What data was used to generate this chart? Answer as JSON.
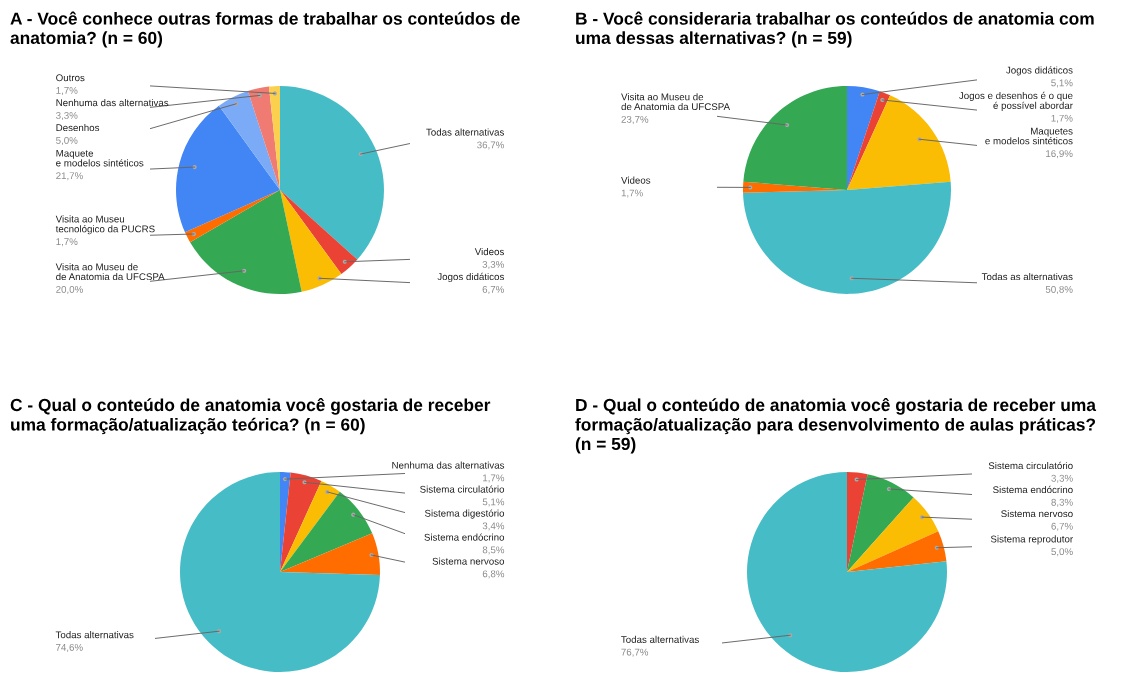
{
  "chart_data": [
    {
      "type": "pie",
      "title": "A - Você conhece outras formas de trabalhar os conteúdos de anatomia? (n = 60)",
      "categories": [
        "Todas alternativas",
        "Videos",
        "Jogos didáticos",
        "Visita ao Museu de\nde Anatomia da UFCSPA",
        "Visita ao Museu\ntecnológico da PUCRS",
        "Maquete\ne modelos sintéticos",
        "Desenhos",
        "Nenhuma das alternativas",
        "Outros"
      ],
      "values": [
        36.7,
        3.3,
        6.7,
        20.0,
        1.7,
        21.7,
        5.0,
        3.3,
        1.7
      ],
      "colors": [
        "#46bdc6",
        "#ea4335",
        "#fbbc04",
        "#34a853",
        "#ff6d01",
        "#4285f4",
        "#7baaf7",
        "#f07b72",
        "#fcd04f"
      ],
      "value_labels": [
        "36,7%",
        "3,3%",
        "6,7%",
        "20,0%",
        "1,7%",
        "21,7%",
        "5,0%",
        "3,3%",
        "1,7%"
      ]
    },
    {
      "type": "pie",
      "title": "B - Você consideraria trabalhar os conteúdos de anatomia com uma dessas alternativas? (n = 59)",
      "categories": [
        "Jogos didáticos",
        "Jogos e desenhos é o que\né possível abordar",
        "Maquetes\ne modelos sintéticos",
        "Todas as alternativas",
        "Videos",
        "Visita ao Museu de\nde Anatomia da UFCSPA"
      ],
      "values": [
        5.1,
        1.7,
        16.9,
        50.8,
        1.7,
        23.7
      ],
      "colors": [
        "#4285f4",
        "#ea4335",
        "#fbbc04",
        "#46bdc6",
        "#ff6d01",
        "#34a853"
      ],
      "value_labels": [
        "5,1%",
        "1,7%",
        "16,9%",
        "50,8%",
        "1,7%",
        "23,7%"
      ]
    },
    {
      "type": "pie",
      "title": "C - Qual o conteúdo de anatomia você gostaria de receber uma formação/atualização teórica? (n = 60)",
      "categories": [
        "Nenhuma das alternativas",
        "Sistema circulatório",
        "Sistema digestório",
        "Sistema endócrino",
        "Sistema nervoso",
        "Todas alternativas"
      ],
      "values": [
        1.7,
        5.1,
        3.4,
        8.5,
        6.8,
        74.6
      ],
      "colors": [
        "#4285f4",
        "#ea4335",
        "#fbbc04",
        "#34a853",
        "#ff6d01",
        "#46bdc6"
      ],
      "value_labels": [
        "1,7%",
        "5,1%",
        "3,4%",
        "8,5%",
        "6,8%",
        "74,6%"
      ]
    },
    {
      "type": "pie",
      "title": "D - Qual o conteúdo de anatomia você gostaria de receber uma formação/atualização para desenvolvimento de aulas práticas? (n = 59)",
      "categories": [
        "Sistema circulatório",
        "Sistema endócrino",
        "Sistema nervoso",
        "Sistema reprodutor",
        "Todas alternativas"
      ],
      "values": [
        3.3,
        8.3,
        6.7,
        5.0,
        76.7
      ],
      "colors": [
        "#ea4335",
        "#34a853",
        "#fbbc04",
        "#ff6d01",
        "#46bdc6"
      ],
      "value_labels": [
        "3,3%",
        "8,3%",
        "6,7%",
        "5,0%",
        "76,7%"
      ]
    }
  ]
}
